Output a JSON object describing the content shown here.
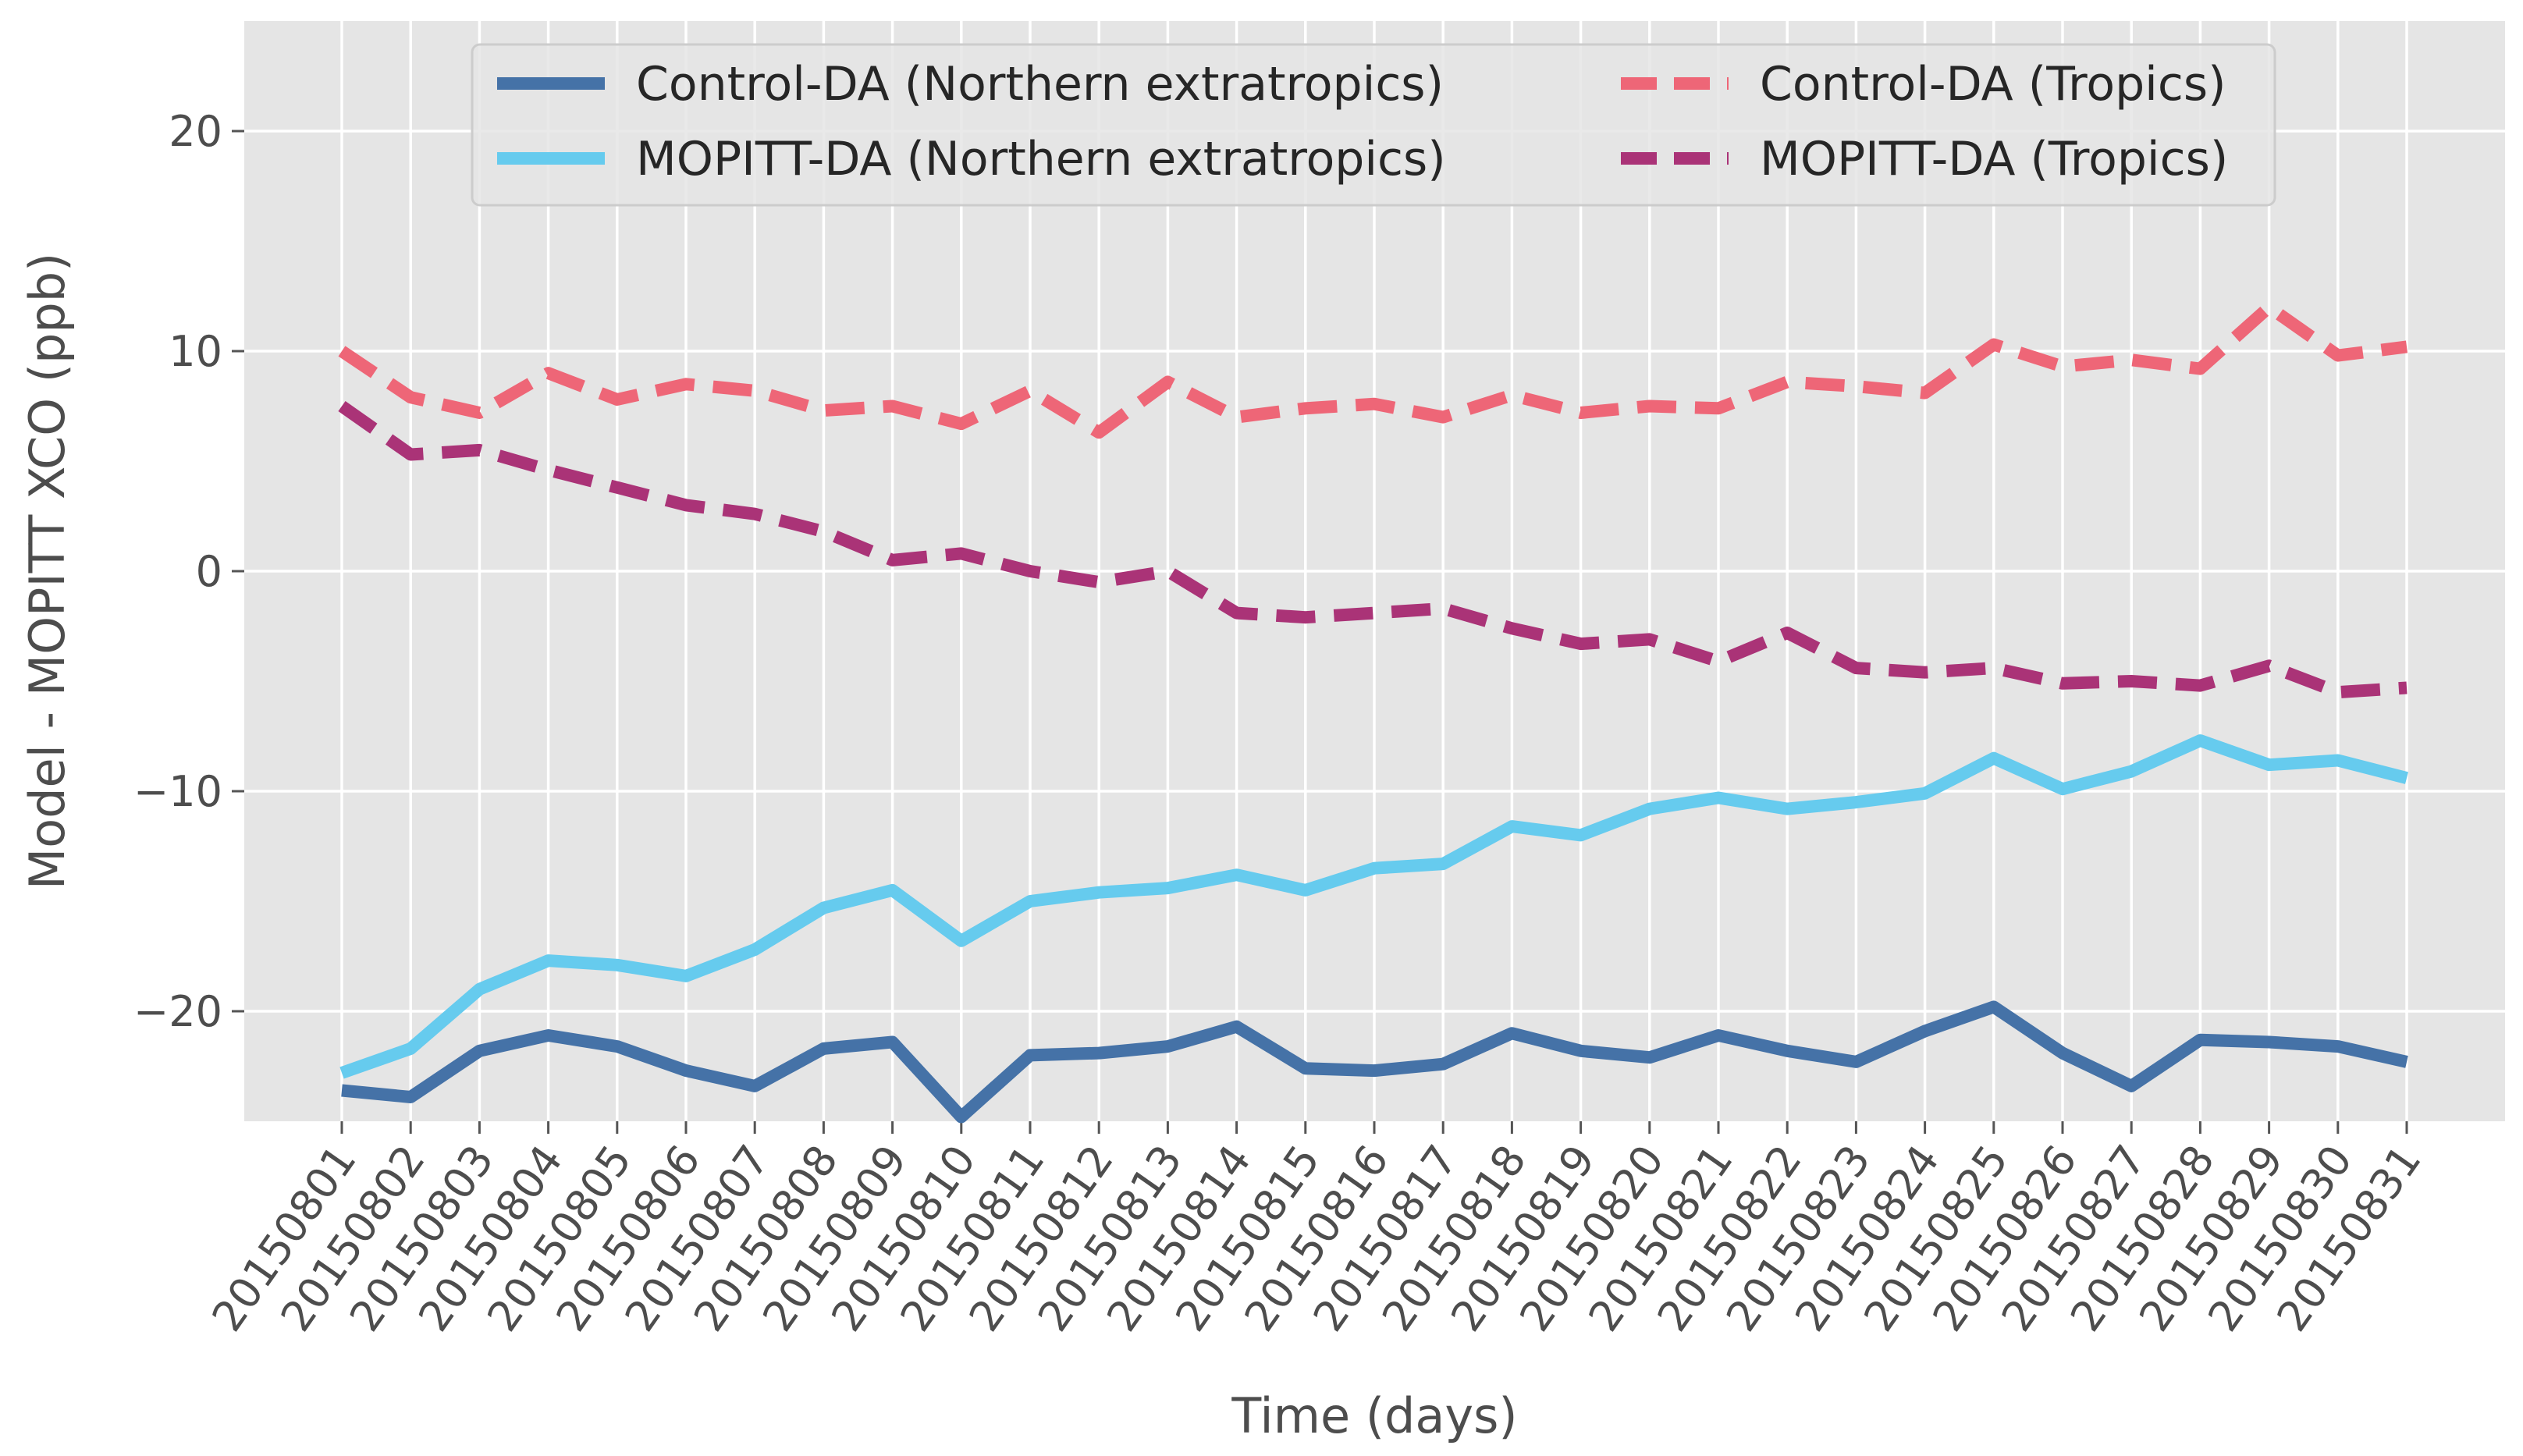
{
  "chart_data": {
    "type": "line",
    "title": "",
    "xlabel": "Time (days)",
    "ylabel": "Model - MOPITT XCO (ppb)",
    "ylim": [
      -25,
      25
    ],
    "yticks": [
      -20,
      -10,
      0,
      10,
      20
    ],
    "ytick_labels": [
      "−20",
      "−10",
      "0",
      "10",
      "20"
    ],
    "grid": true,
    "legend_position": "top-center",
    "categories": [
      "20150801",
      "20150802",
      "20150803",
      "20150804",
      "20150805",
      "20150806",
      "20150807",
      "20150808",
      "20150809",
      "20150810",
      "20150811",
      "20150812",
      "20150813",
      "20150814",
      "20150815",
      "20150816",
      "20150817",
      "20150818",
      "20150819",
      "20150820",
      "20150821",
      "20150822",
      "20150823",
      "20150824",
      "20150825",
      "20150826",
      "20150827",
      "20150828",
      "20150829",
      "20150830",
      "20150831"
    ],
    "series": [
      {
        "name": "Control-DA (Northern extratropics)",
        "color": "#4572a7",
        "dash": "solid",
        "values": [
          -23.6,
          -23.9,
          -21.8,
          -21.1,
          -21.6,
          -22.7,
          -23.4,
          -21.7,
          -21.4,
          -24.8,
          -22.0,
          -21.9,
          -21.6,
          -20.7,
          -22.6,
          -22.7,
          -22.4,
          -21.0,
          -21.8,
          -22.1,
          -21.1,
          -21.8,
          -22.3,
          -20.9,
          -19.8,
          -21.9,
          -23.4,
          -21.3,
          -21.4,
          -21.6,
          -22.3
        ]
      },
      {
        "name": "MOPITT-DA (Northern extratropics)",
        "color": "#66cbee",
        "dash": "solid",
        "values": [
          -22.8,
          -21.7,
          -19.0,
          -17.7,
          -17.9,
          -18.4,
          -17.2,
          -15.3,
          -14.5,
          -16.8,
          -15.0,
          -14.6,
          -14.4,
          -13.8,
          -14.5,
          -13.5,
          -13.3,
          -11.6,
          -12.0,
          -10.8,
          -10.3,
          -10.8,
          -10.5,
          -10.1,
          -8.5,
          -9.9,
          -9.1,
          -7.7,
          -8.8,
          -8.6,
          -9.4
        ]
      },
      {
        "name": "Control-DA (Tropics)",
        "color": "#ee6677",
        "dash": "dashed",
        "values": [
          10.0,
          7.9,
          7.2,
          9.0,
          7.8,
          8.5,
          8.2,
          7.3,
          7.5,
          6.7,
          8.2,
          6.3,
          8.6,
          7.0,
          7.4,
          7.6,
          7.0,
          8.0,
          7.2,
          7.5,
          7.4,
          8.6,
          8.4,
          8.1,
          10.3,
          9.3,
          9.6,
          9.2,
          12.0,
          9.8,
          10.2
        ]
      },
      {
        "name": "MOPITT-DA (Tropics)",
        "color": "#aa3377",
        "dash": "dashed",
        "values": [
          7.5,
          5.3,
          5.5,
          4.6,
          3.8,
          3.0,
          2.6,
          1.8,
          0.5,
          0.8,
          0.0,
          -0.5,
          0.0,
          -1.9,
          -2.1,
          -1.9,
          -1.7,
          -2.6,
          -3.3,
          -3.1,
          -4.1,
          -2.8,
          -4.4,
          -4.6,
          -4.4,
          -5.1,
          -5.0,
          -5.2,
          -4.3,
          -5.5,
          -5.3
        ]
      }
    ]
  }
}
